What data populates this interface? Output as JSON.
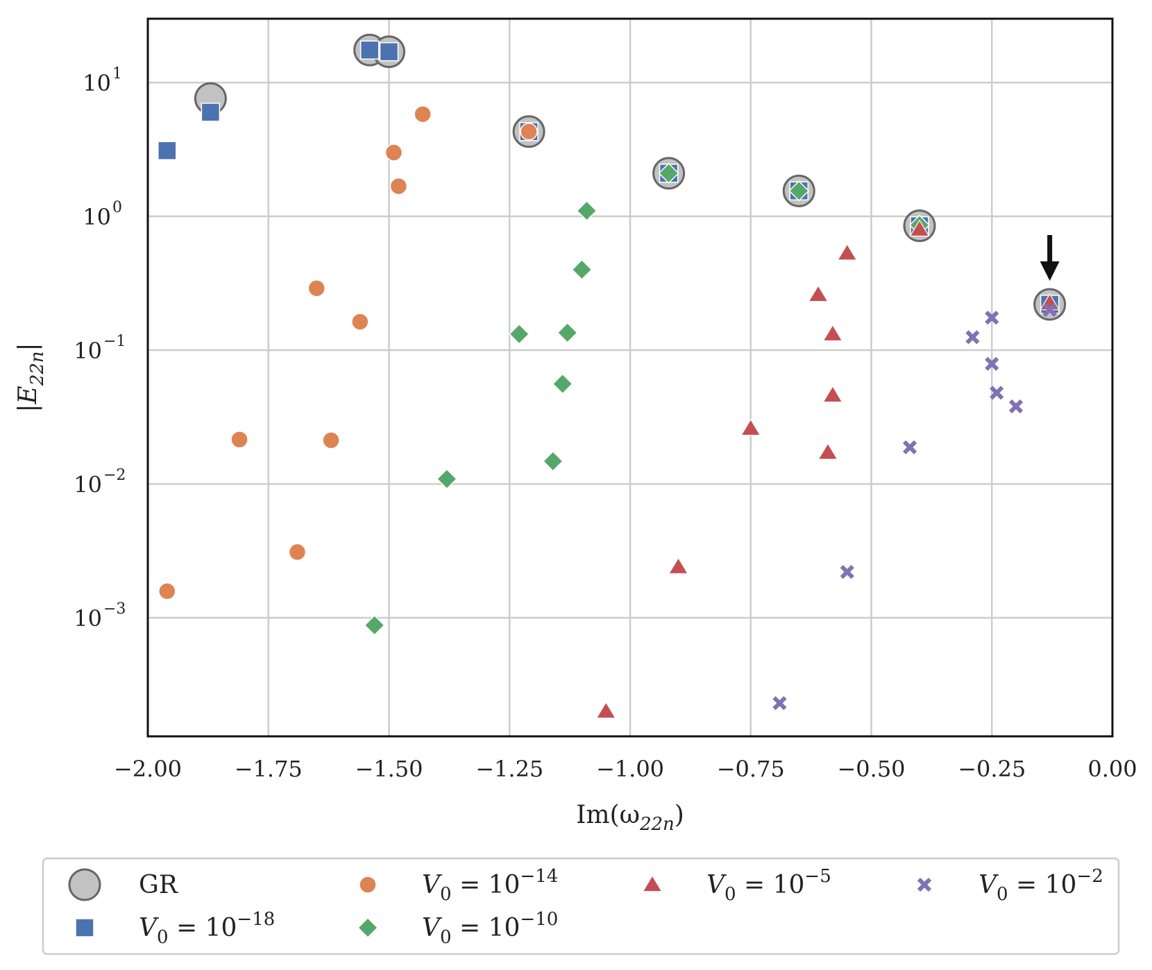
{
  "chart_data": {
    "type": "scatter",
    "x_scale": "linear",
    "y_scale": "log",
    "xlabel": "Im(ω_22n)",
    "ylabel": "|E_22n|",
    "xlim": [
      -2.0,
      0.0
    ],
    "ylim": [
      0.00013,
      30
    ],
    "x_ticks": [
      -2.0,
      -1.75,
      -1.5,
      -1.25,
      -1.0,
      -0.75,
      -0.5,
      -0.25,
      0.0
    ],
    "x_tick_labels": [
      "−2.00",
      "−1.75",
      "−1.50",
      "−1.25",
      "−1.00",
      "−0.75",
      "−0.50",
      "−0.25",
      "0.00"
    ],
    "y_ticks": [
      {
        "value": 10,
        "base": "10",
        "exp": "1"
      },
      {
        "value": 1,
        "base": "10",
        "exp": "0"
      },
      {
        "value": 0.1,
        "base": "10",
        "exp": "−1"
      },
      {
        "value": 0.01,
        "base": "10",
        "exp": "−2"
      },
      {
        "value": 0.001,
        "base": "10",
        "exp": "−3"
      }
    ],
    "grid": true,
    "legend_position": "bottom",
    "annotation": "arrow pointing down at fundamental mode near Im = -0.13",
    "series": [
      {
        "name": "GR",
        "legend": "GR",
        "marker": "big-circle",
        "color": "#bfbfbf",
        "edge": "#666666",
        "points": [
          [
            -1.87,
            7.6
          ],
          [
            -1.54,
            17.5
          ],
          [
            -1.5,
            17.0
          ],
          [
            -1.21,
            4.3
          ],
          [
            -0.92,
            2.1
          ],
          [
            -0.65,
            1.55
          ],
          [
            -0.4,
            0.85
          ],
          [
            -0.13,
            0.22
          ]
        ]
      },
      {
        "name": "V0=1e-18",
        "legend": "V_0 = 10^−18",
        "marker": "square",
        "color": "#4c72b0",
        "points": [
          [
            -1.96,
            3.1
          ],
          [
            -1.87,
            6.0
          ],
          [
            -1.54,
            17.5
          ],
          [
            -1.5,
            17.0
          ],
          [
            -1.21,
            4.3
          ],
          [
            -0.92,
            2.1
          ],
          [
            -0.65,
            1.55
          ],
          [
            -0.4,
            0.85
          ],
          [
            -0.13,
            0.22
          ]
        ]
      },
      {
        "name": "V0=1e-14",
        "legend": "V_0 = 10^−14",
        "marker": "circle",
        "color": "#dd8452",
        "points": [
          [
            -1.43,
            5.8
          ],
          [
            -1.49,
            3.0
          ],
          [
            -1.48,
            1.68
          ],
          [
            -1.21,
            4.3
          ],
          [
            -1.65,
            0.29
          ],
          [
            -1.56,
            0.163
          ],
          [
            -1.81,
            0.0215
          ],
          [
            -1.62,
            0.0212
          ],
          [
            -1.69,
            0.0031
          ],
          [
            -1.96,
            0.00158
          ]
        ]
      },
      {
        "name": "V0=1e-10",
        "legend": "V_0 = 10^−10",
        "marker": "diamond",
        "color": "#55a868",
        "points": [
          [
            -0.92,
            2.1
          ],
          [
            -0.65,
            1.55
          ],
          [
            -1.09,
            1.1
          ],
          [
            -1.1,
            0.4
          ],
          [
            -1.13,
            0.135
          ],
          [
            -1.23,
            0.132
          ],
          [
            -1.14,
            0.056
          ],
          [
            -1.16,
            0.0148
          ],
          [
            -1.38,
            0.0109
          ],
          [
            -1.53,
            0.00088
          ],
          [
            -0.4,
            0.86
          ]
        ]
      },
      {
        "name": "V0=1e-5",
        "legend": "V_0 = 10^−5",
        "marker": "triangle",
        "color": "#c44e52",
        "points": [
          [
            -0.4,
            0.8
          ],
          [
            -0.55,
            0.53
          ],
          [
            -0.61,
            0.26
          ],
          [
            -0.58,
            0.132
          ],
          [
            -0.58,
            0.046
          ],
          [
            -0.75,
            0.026
          ],
          [
            -0.59,
            0.0172
          ],
          [
            -0.9,
            0.0024
          ],
          [
            -1.05,
            0.0002
          ],
          [
            -0.13,
            0.225
          ]
        ]
      },
      {
        "name": "V0=1e-2",
        "legend": "V_0 = 10^−2",
        "marker": "x",
        "color": "#8172b3",
        "points": [
          [
            -0.13,
            0.2
          ],
          [
            -0.25,
            0.175
          ],
          [
            -0.29,
            0.125
          ],
          [
            -0.25,
            0.079
          ],
          [
            -0.24,
            0.048
          ],
          [
            -0.2,
            0.038
          ],
          [
            -0.42,
            0.0188
          ],
          [
            -0.55,
            0.0022
          ],
          [
            -0.69,
            0.00023
          ]
        ]
      }
    ]
  }
}
